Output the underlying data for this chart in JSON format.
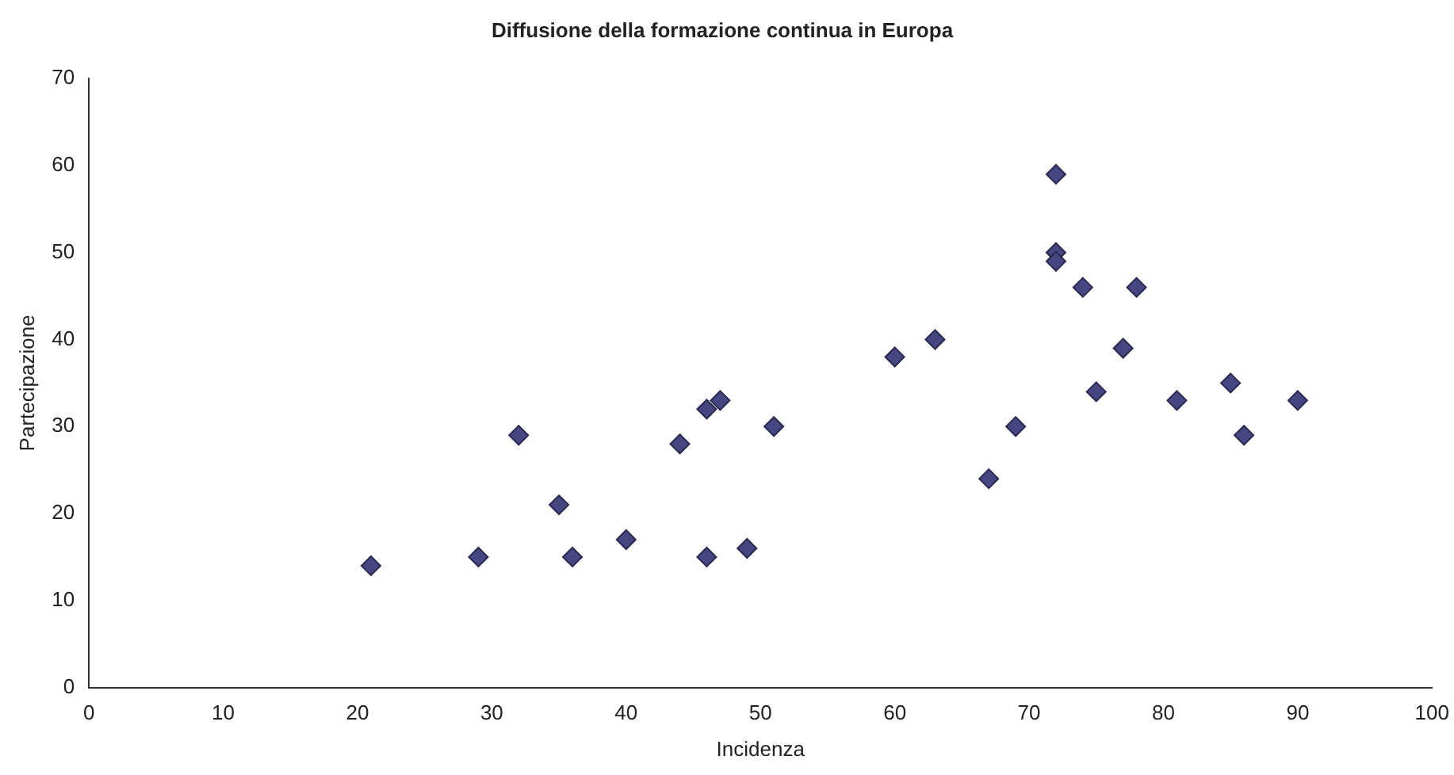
{
  "chart_data": {
    "type": "scatter",
    "title": "Diffusione della formazione continua in Europa",
    "xlabel": "Incidenza",
    "ylabel": "Partecipazione",
    "x": [
      21,
      29,
      32,
      35,
      36,
      40,
      44,
      46,
      46,
      47,
      49,
      51,
      60,
      63,
      67,
      69,
      72,
      72,
      72,
      74,
      75,
      77,
      78,
      81,
      85,
      86,
      90
    ],
    "values": [
      14,
      15,
      29,
      21,
      15,
      17,
      28,
      32,
      15,
      33,
      16,
      30,
      38,
      40,
      24,
      30,
      59,
      50,
      49,
      46,
      34,
      39,
      46,
      33,
      35,
      29,
      33
    ],
    "color": "#464682",
    "marker": "diamond",
    "grid": false,
    "legend": false,
    "xlim": [
      0,
      100
    ],
    "xticks": [
      0,
      10,
      20,
      30,
      40,
      50,
      60,
      70,
      80,
      90,
      100
    ],
    "ylim": [
      0,
      70
    ],
    "yticks": [
      0,
      10,
      20,
      30,
      40,
      50,
      60,
      70
    ]
  }
}
